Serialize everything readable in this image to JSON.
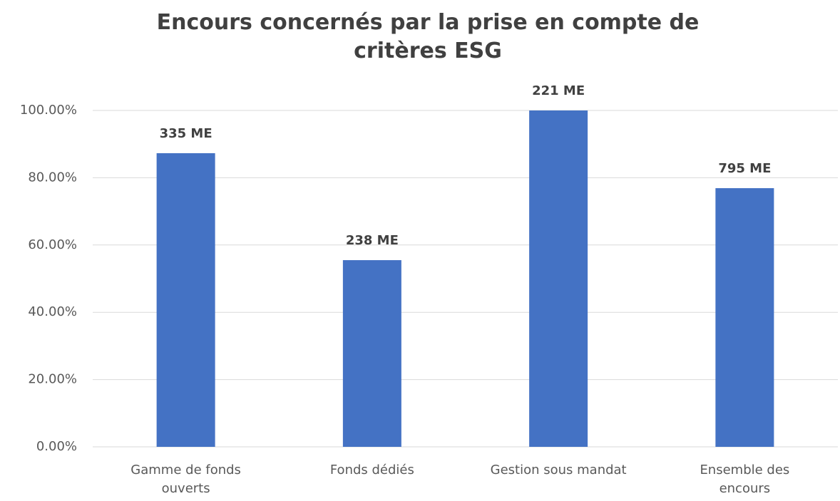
{
  "chart_data": {
    "type": "bar",
    "title": "Encours concernés par la prise en compte de critères ESG",
    "categories": [
      "Gamme de fonds ouverts",
      "Fonds dédiés",
      "Gestion sous mandat",
      "Ensemble des encours"
    ],
    "values": [
      87.3,
      55.5,
      100,
      76.9
    ],
    "annotations": [
      "335 ME",
      "238 ME",
      "221 ME",
      "795 ME"
    ],
    "color": "#4472c4",
    "ylim": [
      0,
      100
    ],
    "yticks": [
      {
        "value": 0,
        "label": "0.00%"
      },
      {
        "value": 20,
        "label": "20.00%"
      },
      {
        "value": 40,
        "label": "40.00%"
      },
      {
        "value": 60,
        "label": "60.00%"
      },
      {
        "value": 80,
        "label": "80.00%"
      },
      {
        "value": 100,
        "label": "100.00%"
      }
    ],
    "grid": true
  }
}
